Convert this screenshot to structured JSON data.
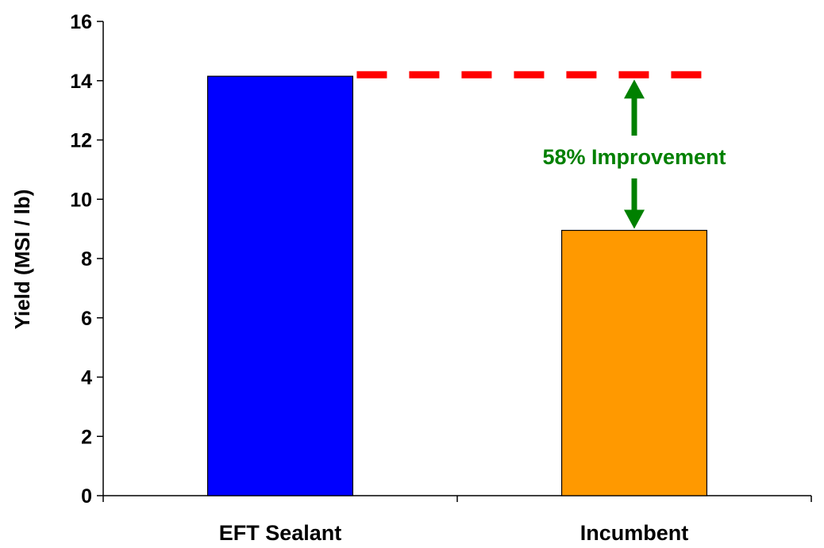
{
  "chart_data": {
    "type": "bar",
    "categories": [
      "EFT Sealant",
      "Incumbent"
    ],
    "values": [
      14.15,
      8.95
    ],
    "colors": [
      "#0000ff",
      "#ff9900"
    ],
    "ylabel": "Yield (MSI / lb)",
    "xlabel": "",
    "ylim": [
      0,
      16
    ],
    "yticks": [
      0,
      2,
      4,
      6,
      8,
      10,
      12,
      14,
      16
    ],
    "grid": false,
    "annotation": {
      "text": "58% Improvement",
      "color": "#008000",
      "reference_line_value": 14.2,
      "reference_line_color": "#ff0000"
    }
  }
}
